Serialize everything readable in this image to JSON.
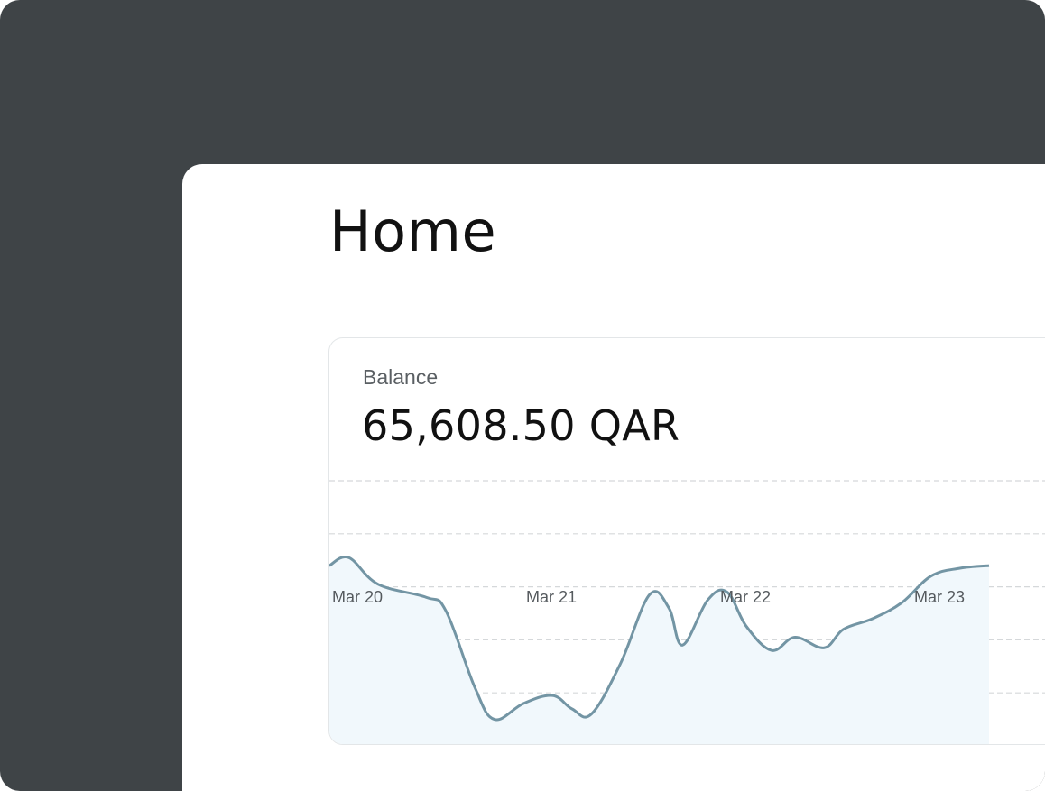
{
  "page": {
    "title": "Home"
  },
  "balance_card": {
    "label": "Balance",
    "value": "65,608.50 QAR"
  },
  "colors": {
    "frame": "#3f4447",
    "line": "#7395a4",
    "fill": "#f1f8fc",
    "grid": "#d5d8da"
  },
  "chart_data": {
    "type": "area",
    "title": "",
    "xlabel": "",
    "ylabel": "",
    "categories": [
      "Mar 20",
      "Mar 21",
      "Mar 22",
      "Mar 23"
    ],
    "x": [
      0,
      0.1,
      0.25,
      0.5,
      0.6,
      0.75,
      0.85,
      1.0,
      1.15,
      1.25,
      1.35,
      1.5,
      1.65,
      1.75,
      1.82,
      1.95,
      2.05,
      2.15,
      2.28,
      2.4,
      2.55,
      2.65,
      2.8,
      2.95,
      3.1,
      3.25,
      3.4
    ],
    "values": [
      68,
      71,
      61,
      56,
      51,
      22,
      10,
      16,
      19,
      14,
      12,
      31,
      57,
      52,
      38,
      55,
      58,
      45,
      36,
      41,
      37,
      44,
      48,
      54,
      64,
      67,
      68
    ],
    "ylim": [
      0,
      100
    ],
    "grid": true,
    "legend": "none"
  }
}
